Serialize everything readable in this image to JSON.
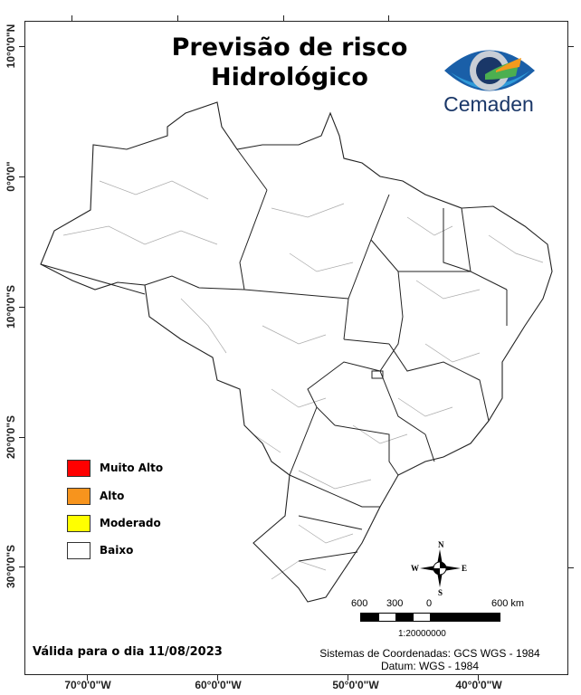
{
  "title": {
    "line1": "Previsão de risco",
    "line2": "Hidrológico"
  },
  "logo": {
    "text": "Cemaden",
    "colors": {
      "blue_dark": "#1a3768",
      "blue_light": "#2f9ad8",
      "green": "#4caf50",
      "orange": "#f39a1e"
    }
  },
  "axes": {
    "latitude_labels": [
      "10°0'0\"N",
      "0°0'0\"",
      "10°0'0\"S",
      "20°0'0\"S",
      "30°0'0\"S"
    ],
    "longitude_labels": [
      "70°0'0\"W",
      "60°0'0\"W",
      "50°0'0\"W",
      "40°0'0\"W"
    ]
  },
  "legend": {
    "items": [
      {
        "label": "Muito Alto",
        "color": "#ff0000"
      },
      {
        "label": "Alto",
        "color": "#f7941d"
      },
      {
        "label": "Moderado",
        "color": "#ffff00"
      },
      {
        "label": "Baixo",
        "color": "#ffffff"
      }
    ]
  },
  "map": {
    "fill": "#ffffff",
    "state_border": "#222222",
    "municipal_border": "#aaaaaa"
  },
  "north_arrow": {
    "n": "N",
    "s": "S",
    "e": "E",
    "w": "W"
  },
  "scale": {
    "labels": [
      "600",
      "300",
      "0",
      "600 km"
    ],
    "ratio": "1:20000000"
  },
  "footer": {
    "valid": "Válida para o dia 11/08/2023",
    "coord_system": "Sistemas de Coordenadas: GCS WGS - 1984",
    "datum": "Datum: WGS - 1984"
  }
}
